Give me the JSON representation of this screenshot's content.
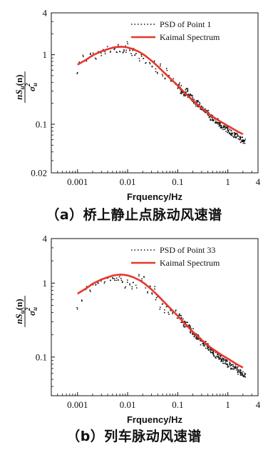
{
  "chart_data": [
    {
      "id": "a",
      "type": "line",
      "caption": "（a）桥上静止点脉动风速谱",
      "xlabel": "Frquency/Hz",
      "ylabel_parts": {
        "n": "n",
        "S": "S",
        "u": "u",
        "arg": "(n)",
        "sigma": "σ",
        "sub": "u",
        "sup": "2"
      },
      "xscale": "log",
      "yscale": "log",
      "xlim": [
        0.0003,
        4
      ],
      "ylim": [
        0.02,
        4
      ],
      "xticks": [
        0.001,
        0.01,
        0.1,
        1,
        4
      ],
      "xtick_labels": [
        "0.001",
        "0.01",
        "0.1",
        "1",
        "4"
      ],
      "yticks": [
        0.02,
        0.1,
        1,
        4
      ],
      "ytick_labels": [
        "0.02",
        "0.1",
        "1",
        "4"
      ],
      "legend_position": "top-right",
      "grid": false,
      "series": [
        {
          "name": "PSD of Point 1",
          "style": "dotted",
          "color": "#111111",
          "x": [
            0.001,
            0.0011,
            0.0013,
            0.0015,
            0.0018,
            0.002,
            0.0023,
            0.0026,
            0.003,
            0.0033,
            0.0036,
            0.004,
            0.0045,
            0.005,
            0.0055,
            0.006,
            0.0065,
            0.007,
            0.0075,
            0.008,
            0.0085,
            0.009,
            0.0095,
            0.01,
            0.011,
            0.012,
            0.013,
            0.014,
            0.015,
            0.017,
            0.019,
            0.021,
            0.023,
            0.025,
            0.028,
            0.031,
            0.034,
            0.037,
            0.04,
            0.045,
            0.05,
            0.055,
            0.06,
            0.066,
            0.073,
            0.08,
            0.09,
            0.1,
            0.11,
            0.12,
            0.135,
            0.15,
            0.17,
            0.19,
            0.21,
            0.24,
            0.27,
            0.3,
            0.34,
            0.38,
            0.43,
            0.48,
            0.54,
            0.6,
            0.68,
            0.76,
            0.85,
            0.95,
            1.05,
            1.2,
            1.35,
            1.5,
            1.7,
            1.9,
            2.1
          ],
          "y": [
            0.55,
            0.75,
            0.95,
            0.85,
            1.05,
            1.0,
            0.9,
            1.1,
            1.0,
            1.15,
            1.05,
            1.25,
            1.1,
            1.3,
            1.2,
            1.1,
            1.35,
            1.15,
            1.25,
            1.05,
            1.2,
            1.3,
            1.1,
            1.45,
            1.15,
            1.0,
            1.2,
            0.95,
            1.1,
            0.85,
            1.0,
            0.9,
            0.8,
            0.95,
            0.75,
            0.65,
            0.8,
            0.6,
            0.55,
            0.7,
            0.5,
            0.45,
            0.6,
            0.48,
            0.4,
            0.45,
            0.38,
            0.33,
            0.36,
            0.3,
            0.28,
            0.3,
            0.26,
            0.24,
            0.22,
            0.2,
            0.19,
            0.17,
            0.16,
            0.15,
            0.135,
            0.125,
            0.115,
            0.11,
            0.1,
            0.095,
            0.09,
            0.085,
            0.08,
            0.075,
            0.07,
            0.068,
            0.064,
            0.06,
            0.058
          ]
        },
        {
          "name": "Kaimal Spectrum",
          "style": "solid",
          "color": "#e8372c",
          "x": [
            0.001,
            0.0015,
            0.002,
            0.003,
            0.004,
            0.005,
            0.006,
            0.007,
            0.008,
            0.01,
            0.013,
            0.017,
            0.022,
            0.03,
            0.04,
            0.05,
            0.07,
            0.1,
            0.14,
            0.2,
            0.3,
            0.45,
            0.7,
            1.0,
            1.5,
            2.0
          ],
          "y": [
            0.72,
            0.85,
            0.98,
            1.12,
            1.2,
            1.26,
            1.29,
            1.3,
            1.3,
            1.27,
            1.2,
            1.1,
            0.98,
            0.82,
            0.68,
            0.58,
            0.46,
            0.36,
            0.28,
            0.22,
            0.17,
            0.135,
            0.11,
            0.095,
            0.08,
            0.072
          ]
        }
      ]
    },
    {
      "id": "b",
      "type": "line",
      "caption": "（b）列车脉动风速谱",
      "xlabel": "Frquency/Hz",
      "ylabel_parts": {
        "n": "n",
        "S": "S",
        "u": "u",
        "arg": "(n)",
        "sigma": "σ",
        "sub": "u",
        "sup": "2"
      },
      "xscale": "log",
      "yscale": "log",
      "xlim": [
        0.0003,
        4
      ],
      "ylim": [
        0.03,
        4
      ],
      "xticks": [
        0.001,
        0.01,
        0.1,
        1,
        4
      ],
      "xtick_labels": [
        "0.001",
        "0.01",
        "0.1",
        "1",
        "4"
      ],
      "yticks": [
        0.1,
        1,
        4
      ],
      "ytick_labels": [
        "0.1",
        "1",
        "4"
      ],
      "legend_position": "top-right",
      "grid": false,
      "series": [
        {
          "name": "PSD of Point 33",
          "style": "dotted",
          "color": "#111111",
          "x": [
            0.001,
            0.0012,
            0.0015,
            0.0018,
            0.002,
            0.0023,
            0.0026,
            0.003,
            0.0035,
            0.004,
            0.0045,
            0.005,
            0.0055,
            0.006,
            0.0065,
            0.007,
            0.0075,
            0.008,
            0.009,
            0.01,
            0.011,
            0.012,
            0.013,
            0.015,
            0.017,
            0.019,
            0.021,
            0.023,
            0.025,
            0.028,
            0.031,
            0.034,
            0.037,
            0.04,
            0.045,
            0.05,
            0.055,
            0.06,
            0.066,
            0.073,
            0.08,
            0.09,
            0.1,
            0.11,
            0.12,
            0.135,
            0.15,
            0.17,
            0.19,
            0.21,
            0.24,
            0.27,
            0.3,
            0.34,
            0.38,
            0.43,
            0.48,
            0.54,
            0.6,
            0.68,
            0.76,
            0.85,
            0.95,
            1.05,
            1.2,
            1.35,
            1.5,
            1.7,
            1.9,
            2.1
          ],
          "y": [
            0.47,
            0.6,
            0.85,
            0.8,
            1.0,
            0.95,
            1.05,
            1.1,
            1.0,
            1.15,
            1.05,
            1.2,
            1.1,
            1.15,
            1.05,
            1.2,
            1.1,
            1.0,
            0.9,
            1.05,
            0.95,
            0.85,
            1.0,
            0.9,
            1.25,
            1.1,
            1.2,
            0.9,
            0.75,
            0.95,
            0.7,
            0.85,
            0.6,
            0.65,
            0.45,
            0.55,
            0.42,
            0.5,
            0.4,
            0.45,
            0.38,
            0.42,
            0.34,
            0.36,
            0.32,
            0.28,
            0.27,
            0.25,
            0.23,
            0.2,
            0.19,
            0.18,
            0.16,
            0.15,
            0.14,
            0.13,
            0.12,
            0.11,
            0.105,
            0.1,
            0.095,
            0.09,
            0.085,
            0.08,
            0.075,
            0.072,
            0.068,
            0.064,
            0.06,
            0.056
          ]
        },
        {
          "name": "Kaimal Spectrum",
          "style": "solid",
          "color": "#e8372c",
          "x": [
            0.001,
            0.0015,
            0.002,
            0.003,
            0.004,
            0.005,
            0.006,
            0.007,
            0.008,
            0.01,
            0.013,
            0.017,
            0.022,
            0.03,
            0.04,
            0.05,
            0.07,
            0.1,
            0.14,
            0.2,
            0.3,
            0.45,
            0.7,
            1.0,
            1.5,
            2.0
          ],
          "y": [
            0.72,
            0.85,
            0.98,
            1.12,
            1.2,
            1.26,
            1.29,
            1.3,
            1.3,
            1.27,
            1.2,
            1.1,
            0.98,
            0.82,
            0.68,
            0.58,
            0.46,
            0.36,
            0.28,
            0.22,
            0.17,
            0.135,
            0.11,
            0.095,
            0.08,
            0.072
          ]
        }
      ]
    }
  ]
}
